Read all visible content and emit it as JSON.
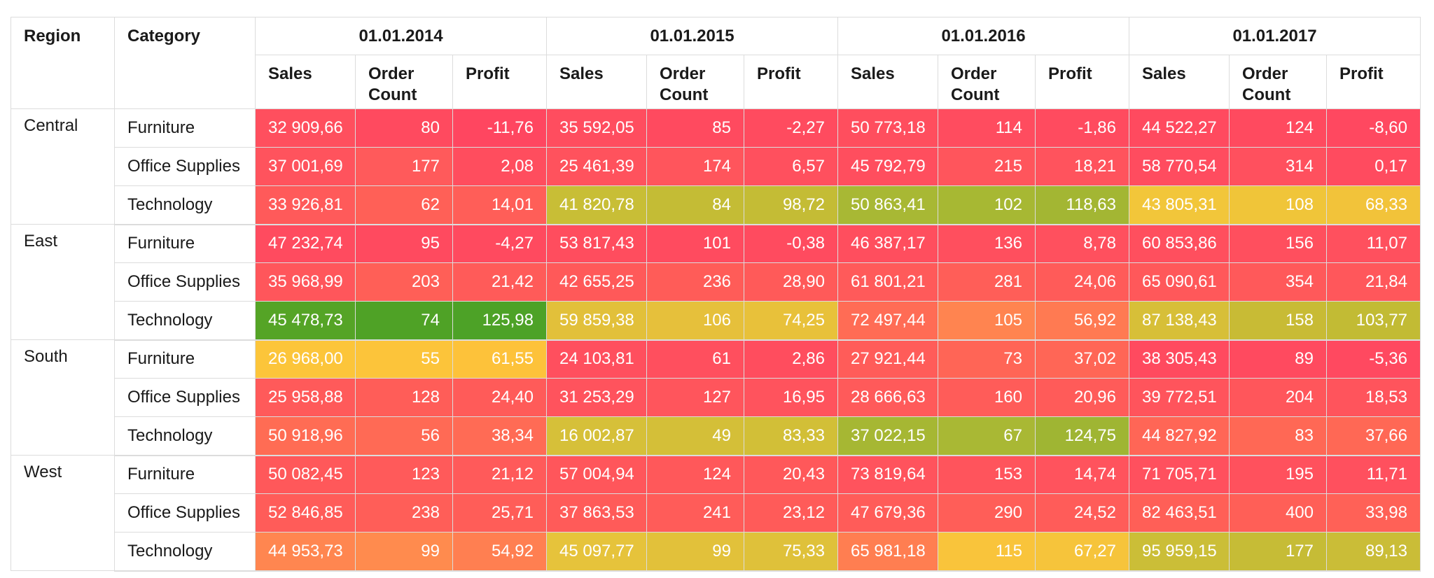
{
  "headers": {
    "region": "Region",
    "category": "Category",
    "metrics": [
      "Sales",
      "Order Count",
      "Profit"
    ]
  },
  "years": [
    "01.01.2014",
    "01.01.2015",
    "01.01.2016",
    "01.01.2017"
  ],
  "rows": [
    {
      "region": "Central",
      "category": "Furniture",
      "values": [
        {
          "text": "32 909,66",
          "bg": "#ff4f5e"
        },
        {
          "text": "80",
          "bg": "#ff4a5f"
        },
        {
          "text": "-11,76",
          "bg": "#ff4660"
        },
        {
          "text": "35 592,05",
          "bg": "#ff4d5f"
        },
        {
          "text": "85",
          "bg": "#ff4a5f"
        },
        {
          "text": "-2,27",
          "bg": "#ff4b5f"
        },
        {
          "text": "50 773,18",
          "bg": "#ff4e5e"
        },
        {
          "text": "114",
          "bg": "#ff4c5f"
        },
        {
          "text": "-1,86",
          "bg": "#ff4b5f"
        },
        {
          "text": "44 522,27",
          "bg": "#ff4a5f"
        },
        {
          "text": "124",
          "bg": "#ff4a5f"
        },
        {
          "text": "-8,60",
          "bg": "#ff4860"
        }
      ]
    },
    {
      "region": "",
      "category": "Office Supplies",
      "values": [
        {
          "text": "37 001,69",
          "bg": "#ff535d"
        },
        {
          "text": "177",
          "bg": "#ff5a5b"
        },
        {
          "text": "2,08",
          "bg": "#ff4d5e"
        },
        {
          "text": "25 461,39",
          "bg": "#ff525d"
        },
        {
          "text": "174",
          "bg": "#ff555c"
        },
        {
          "text": "6,57",
          "bg": "#ff505e"
        },
        {
          "text": "45 792,79",
          "bg": "#ff4e5e"
        },
        {
          "text": "215",
          "bg": "#ff555c"
        },
        {
          "text": "18,21",
          "bg": "#ff535d"
        },
        {
          "text": "58 770,54",
          "bg": "#ff4c5f"
        },
        {
          "text": "314",
          "bg": "#ff505e"
        },
        {
          "text": "0,17",
          "bg": "#ff4b5f"
        }
      ]
    },
    {
      "region": "",
      "category": "Technology",
      "values": [
        {
          "text": "33 926,81",
          "bg": "#ff5a5a"
        },
        {
          "text": "62",
          "bg": "#ff6057"
        },
        {
          "text": "14,01",
          "bg": "#ff5e58"
        },
        {
          "text": "41 820,78",
          "bg": "#c8be36"
        },
        {
          "text": "84",
          "bg": "#c4bc35"
        },
        {
          "text": "98,72",
          "bg": "#c4bc35"
        },
        {
          "text": "50 863,41",
          "bg": "#a8b834"
        },
        {
          "text": "102",
          "bg": "#a7b833"
        },
        {
          "text": "118,63",
          "bg": "#a3b633"
        },
        {
          "text": "43 805,31",
          "bg": "#f2c63a"
        },
        {
          "text": "108",
          "bg": "#f0c539"
        },
        {
          "text": "68,33",
          "bg": "#f2c33a"
        }
      ]
    },
    {
      "region": "East",
      "category": "Furniture",
      "values": [
        {
          "text": "47 232,74",
          "bg": "#ff4b5f"
        },
        {
          "text": "95",
          "bg": "#ff4a5f"
        },
        {
          "text": "-4,27",
          "bg": "#ff4a5f"
        },
        {
          "text": "53 817,43",
          "bg": "#ff4d5e"
        },
        {
          "text": "101",
          "bg": "#ff4b5f"
        },
        {
          "text": "-0,38",
          "bg": "#ff4b5f"
        },
        {
          "text": "46 387,17",
          "bg": "#ff4e5e"
        },
        {
          "text": "136",
          "bg": "#ff4f5e"
        },
        {
          "text": "8,78",
          "bg": "#ff505e"
        },
        {
          "text": "60 853,86",
          "bg": "#ff4f5e"
        },
        {
          "text": "156",
          "bg": "#ff4f5e"
        },
        {
          "text": "11,07",
          "bg": "#ff505e"
        }
      ]
    },
    {
      "region": "",
      "category": "Office Supplies",
      "values": [
        {
          "text": "35 968,99",
          "bg": "#ff565b"
        },
        {
          "text": "203",
          "bg": "#ff5f57"
        },
        {
          "text": "21,42",
          "bg": "#ff5b59"
        },
        {
          "text": "42 655,25",
          "bg": "#ff5959"
        },
        {
          "text": "236",
          "bg": "#ff5c58"
        },
        {
          "text": "28,90",
          "bg": "#ff5a59"
        },
        {
          "text": "61 801,21",
          "bg": "#ff5a5a"
        },
        {
          "text": "281",
          "bg": "#ff5e58"
        },
        {
          "text": "24,06",
          "bg": "#ff5b59"
        },
        {
          "text": "65 090,61",
          "bg": "#ff585a"
        },
        {
          "text": "354",
          "bg": "#ff595a"
        },
        {
          "text": "21,84",
          "bg": "#ff575b"
        }
      ]
    },
    {
      "region": "",
      "category": "Technology",
      "values": [
        {
          "text": "45 478,73",
          "bg": "#55a426"
        },
        {
          "text": "74",
          "bg": "#4fa226"
        },
        {
          "text": "125,98",
          "bg": "#4da227"
        },
        {
          "text": "59 859,38",
          "bg": "#e2c03a"
        },
        {
          "text": "106",
          "bg": "#e6c03b"
        },
        {
          "text": "74,25",
          "bg": "#e8c13a"
        },
        {
          "text": "72 497,44",
          "bg": "#ff6c55"
        },
        {
          "text": "105",
          "bg": "#ff8450"
        },
        {
          "text": "56,92",
          "bg": "#ff7a52"
        },
        {
          "text": "87 138,43",
          "bg": "#d7bf38"
        },
        {
          "text": "158",
          "bg": "#c8bb35"
        },
        {
          "text": "103,77",
          "bg": "#c2bb34"
        }
      ]
    },
    {
      "region": "South",
      "category": "Furniture",
      "values": [
        {
          "text": "26 968,00",
          "bg": "#fcc53a"
        },
        {
          "text": "55",
          "bg": "#fcc43a"
        },
        {
          "text": "61,55",
          "bg": "#fdc23a"
        },
        {
          "text": "24 103,81",
          "bg": "#ff4f5e"
        },
        {
          "text": "61",
          "bg": "#ff4f5e"
        },
        {
          "text": "2,86",
          "bg": "#ff4d5e"
        },
        {
          "text": "27 921,44",
          "bg": "#ff5c59"
        },
        {
          "text": "73",
          "bg": "#ff6556"
        },
        {
          "text": "37,02",
          "bg": "#ff6656"
        },
        {
          "text": "38 305,43",
          "bg": "#ff4a5f"
        },
        {
          "text": "89",
          "bg": "#ff4a5f"
        },
        {
          "text": "-5,36",
          "bg": "#ff4960"
        }
      ]
    },
    {
      "region": "",
      "category": "Office Supplies",
      "values": [
        {
          "text": "25 958,88",
          "bg": "#ff5a5a"
        },
        {
          "text": "128",
          "bg": "#ff5d58"
        },
        {
          "text": "24,40",
          "bg": "#ff5b59"
        },
        {
          "text": "31 253,29",
          "bg": "#ff535d"
        },
        {
          "text": "127",
          "bg": "#ff555c"
        },
        {
          "text": "16,95",
          "bg": "#ff535d"
        },
        {
          "text": "28 666,63",
          "bg": "#ff5a5a"
        },
        {
          "text": "160",
          "bg": "#ff5c59"
        },
        {
          "text": "20,96",
          "bg": "#ff5b59"
        },
        {
          "text": "39 772,51",
          "bg": "#ff545c"
        },
        {
          "text": "204",
          "bg": "#ff565b"
        },
        {
          "text": "18,53",
          "bg": "#ff545c"
        }
      ]
    },
    {
      "region": "",
      "category": "Technology",
      "values": [
        {
          "text": "50 918,96",
          "bg": "#ff6c54"
        },
        {
          "text": "56",
          "bg": "#ff6a55"
        },
        {
          "text": "38,34",
          "bg": "#ff6b55"
        },
        {
          "text": "16 002,87",
          "bg": "#d6c039"
        },
        {
          "text": "49",
          "bg": "#d4bf38"
        },
        {
          "text": "83,33",
          "bg": "#d2bf37"
        },
        {
          "text": "37 022,15",
          "bg": "#a6b733"
        },
        {
          "text": "67",
          "bg": "#a9b834"
        },
        {
          "text": "124,75",
          "bg": "#9fb533"
        },
        {
          "text": "44 827,92",
          "bg": "#ff6656"
        },
        {
          "text": "83",
          "bg": "#ff6855"
        },
        {
          "text": "37,66",
          "bg": "#ff6855"
        }
      ]
    },
    {
      "region": "West",
      "category": "Furniture",
      "values": [
        {
          "text": "50 082,45",
          "bg": "#ff585a"
        },
        {
          "text": "123",
          "bg": "#ff5a5a"
        },
        {
          "text": "21,12",
          "bg": "#ff5a5a"
        },
        {
          "text": "57 004,94",
          "bg": "#ff565b"
        },
        {
          "text": "124",
          "bg": "#ff585a"
        },
        {
          "text": "20,43",
          "bg": "#ff585a"
        },
        {
          "text": "73 819,64",
          "bg": "#ff535d"
        },
        {
          "text": "153",
          "bg": "#ff545c"
        },
        {
          "text": "14,74",
          "bg": "#ff535d"
        },
        {
          "text": "71 705,71",
          "bg": "#ff505e"
        },
        {
          "text": "195",
          "bg": "#ff515d"
        },
        {
          "text": "11,71",
          "bg": "#ff505e"
        }
      ]
    },
    {
      "region": "",
      "category": "Office Supplies",
      "values": [
        {
          "text": "52 846,85",
          "bg": "#ff5c59"
        },
        {
          "text": "238",
          "bg": "#ff5e58"
        },
        {
          "text": "25,71",
          "bg": "#ff5d58"
        },
        {
          "text": "37 863,53",
          "bg": "#ff5b59"
        },
        {
          "text": "241",
          "bg": "#ff5c59"
        },
        {
          "text": "23,12",
          "bg": "#ff5b59"
        },
        {
          "text": "47 679,36",
          "bg": "#ff5c59"
        },
        {
          "text": "290",
          "bg": "#ff5e58"
        },
        {
          "text": "24,52",
          "bg": "#ff5c59"
        },
        {
          "text": "82 463,51",
          "bg": "#ff5f57"
        },
        {
          "text": "400",
          "bg": "#ff5f57"
        },
        {
          "text": "33,98",
          "bg": "#ff6157"
        }
      ]
    },
    {
      "region": "",
      "category": "Technology",
      "values": [
        {
          "text": "44 953,73",
          "bg": "#ff8650"
        },
        {
          "text": "99",
          "bg": "#ff8b4e"
        },
        {
          "text": "54,92",
          "bg": "#ff7f51"
        },
        {
          "text": "45 097,77",
          "bg": "#e6c33b"
        },
        {
          "text": "99",
          "bg": "#e2c13a"
        },
        {
          "text": "75,33",
          "bg": "#dfc13a"
        },
        {
          "text": "65 981,18",
          "bg": "#ff7e51"
        },
        {
          "text": "115",
          "bg": "#f9c43b"
        },
        {
          "text": "67,27",
          "bg": "#f6c43b"
        },
        {
          "text": "95 959,15",
          "bg": "#cbbe37"
        },
        {
          "text": "177",
          "bg": "#c6bc36"
        },
        {
          "text": "89,13",
          "bg": "#cabd37"
        }
      ]
    }
  ]
}
